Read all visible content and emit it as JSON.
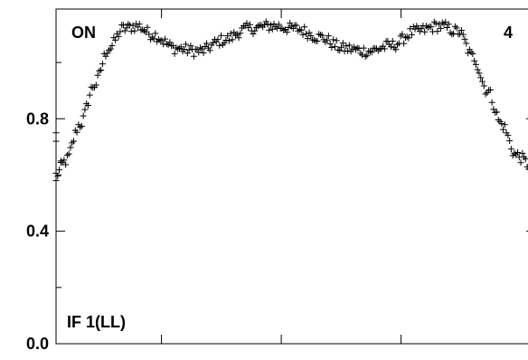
{
  "chart_data": {
    "type": "scatter",
    "marker": "plus",
    "color": "#000000",
    "title": "",
    "xlabel": "",
    "ylabel": "",
    "ylim": [
      0.0,
      1.19
    ],
    "xlim": [
      0,
      1
    ],
    "y_ticks": [
      0.0,
      0.4,
      0.8
    ],
    "y_tick_labels": [
      "0.0",
      "0.4",
      "0.8"
    ],
    "annotations": {
      "top_left": "ON",
      "top_right": "4",
      "bottom_left": "IF 1(LL)"
    },
    "series": [
      {
        "profile_x": [
          0.0,
          0.02,
          0.05,
          0.08,
          0.11,
          0.14,
          0.17,
          0.2,
          0.25,
          0.3,
          0.35,
          0.4,
          0.45,
          0.5,
          0.55,
          0.6,
          0.65,
          0.7,
          0.75,
          0.8,
          0.84,
          0.87,
          0.9,
          0.93,
          0.96,
          1.0
        ],
        "profile_y": [
          0.6,
          0.65,
          0.78,
          0.92,
          1.05,
          1.12,
          1.13,
          1.1,
          1.05,
          1.04,
          1.08,
          1.12,
          1.13,
          1.12,
          1.09,
          1.05,
          1.04,
          1.06,
          1.11,
          1.13,
          1.11,
          1.02,
          0.9,
          0.78,
          0.67,
          0.62
        ],
        "scatter_noise": 0.02,
        "num_points": 300
      }
    ],
    "outliers": [
      {
        "x": 0.0,
        "y": 0.58
      },
      {
        "x": 0.0,
        "y": 0.75
      },
      {
        "x": 0.0,
        "y": 0.72
      },
      {
        "x": 0.01,
        "y": 0.65
      },
      {
        "x": 1.0,
        "y": 0.58
      },
      {
        "x": 1.0,
        "y": 0.64
      }
    ]
  }
}
